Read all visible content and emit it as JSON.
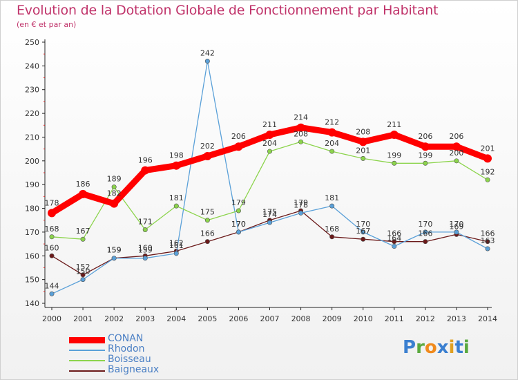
{
  "title": "Evolution de la Dotation Globale de Fonctionnement par Habitant",
  "subtitle": "(en € et par an)",
  "logo": {
    "text": "Proxiti",
    "colors": [
      "#3a7fd0",
      "#5aa93e",
      "#f08a1c",
      "#3a7fd0",
      "#e0a020",
      "#3a7fd0",
      "#5aa93e"
    ]
  },
  "chart_data": {
    "type": "line",
    "x": [
      "2000",
      "2001",
      "2002",
      "2003",
      "2004",
      "2005",
      "2006",
      "2007",
      "2008",
      "2009",
      "2010",
      "2011",
      "2012",
      "2013",
      "2014"
    ],
    "ylim": [
      140,
      250
    ],
    "yticks": [
      140,
      150,
      160,
      170,
      180,
      190,
      200,
      210,
      220,
      230,
      240,
      250
    ],
    "grid": false,
    "legend_position": "bottom-left",
    "series": [
      {
        "name": "CONAN",
        "color": "#ff0000",
        "values": [
          178,
          186,
          182,
          196,
          198,
          202,
          206,
          211,
          214,
          212,
          208,
          211,
          206,
          206,
          201
        ]
      },
      {
        "name": "Rhodon",
        "color": "#5aa0d8",
        "values": [
          144,
          150,
          159,
          159,
          161,
          242,
          170,
          174,
          178,
          181,
          170,
          164,
          170,
          170,
          163
        ]
      },
      {
        "name": "Boisseau",
        "color": "#8cd44c",
        "values": [
          168,
          167,
          189,
          171,
          181,
          175,
          179,
          204,
          208,
          204,
          201,
          199,
          199,
          200,
          192
        ]
      },
      {
        "name": "Baigneaux",
        "color": "#6b1a1a",
        "values": [
          160,
          152,
          159,
          160,
          162,
          166,
          170,
          175,
          179,
          168,
          167,
          166,
          166,
          169,
          166
        ]
      }
    ]
  }
}
